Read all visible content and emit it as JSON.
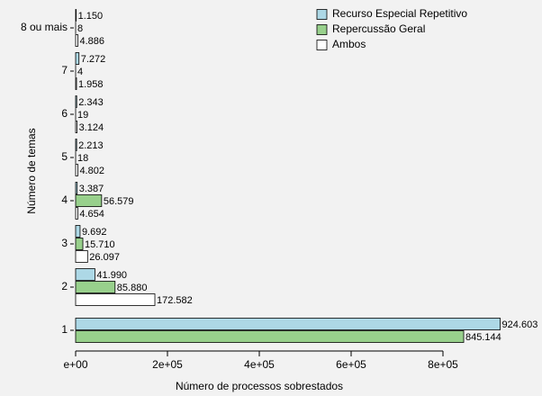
{
  "chart_data": {
    "type": "bar",
    "orientation": "horizontal",
    "xlabel": "Número de processos sobrestados",
    "ylabel": "Número de temas",
    "categories": [
      "1",
      "2",
      "3",
      "4",
      "5",
      "6",
      "7",
      "8 ou mais"
    ],
    "series": [
      {
        "name": "Recurso Especial Repetitivo",
        "color": "#add8e6",
        "values": [
          924603,
          41990,
          9692,
          3387,
          2213,
          2343,
          7272,
          1150
        ],
        "value_labels": [
          "924.603",
          "41.990",
          "9.692",
          "3.387",
          "2.213",
          "2.343",
          "7.272",
          "1.150"
        ]
      },
      {
        "name": "Repercussão Geral",
        "color": "#98d08c",
        "values": [
          845144,
          85880,
          15710,
          56579,
          18,
          19,
          4,
          8
        ],
        "value_labels": [
          "845.144",
          "85.880",
          "15.710",
          "56.579",
          "18",
          "19",
          "4",
          "8"
        ]
      },
      {
        "name": "Ambos",
        "color": "#ffffff",
        "values": [
          null,
          172582,
          26097,
          4654,
          4802,
          3124,
          1958,
          4886
        ],
        "value_labels": [
          null,
          "172.582",
          "26.097",
          "4.654",
          "4.802",
          "3.124",
          "1.958",
          "4.886"
        ]
      }
    ],
    "xlim": [
      0,
      950000
    ],
    "xticks": [
      {
        "value": 0,
        "label": "e+00"
      },
      {
        "value": 200000,
        "label": "2e+05"
      },
      {
        "value": 400000,
        "label": "4e+05"
      },
      {
        "value": 600000,
        "label": "6e+05"
      },
      {
        "value": 800000,
        "label": "8e+05"
      }
    ],
    "legend": "top-right"
  }
}
